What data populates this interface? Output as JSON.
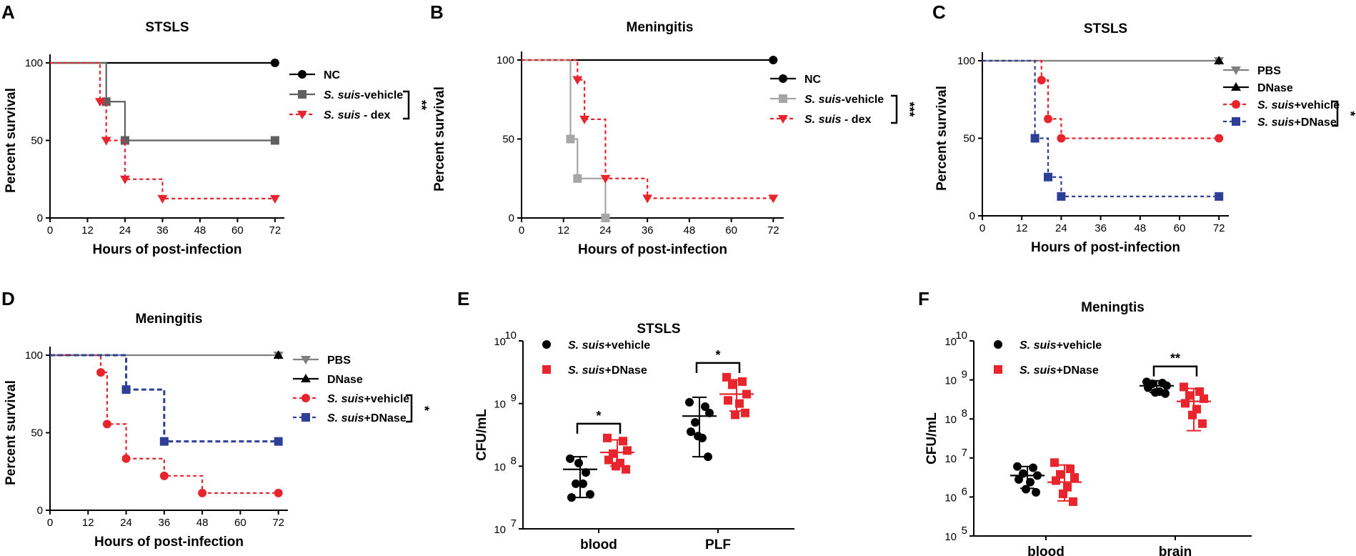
{
  "chart_data": [
    {
      "type": "survival",
      "panel_label": "A",
      "title": "STSLS",
      "xlabel": "Hours of post-infection",
      "ylabel": "Percent survival",
      "xlim": [
        0,
        75
      ],
      "ylim": [
        0,
        100
      ],
      "xticks": [
        "0",
        "12",
        "24",
        "36",
        "48",
        "60",
        "72"
      ],
      "yticks": [
        "0",
        "50",
        "100"
      ],
      "series": [
        {
          "name": "NC",
          "italic": "",
          "rest": "NC",
          "color": "#000000",
          "dash": false,
          "marker": "circle",
          "steps": [
            [
              0,
              100
            ],
            [
              72,
              100
            ]
          ],
          "markers": [
            [
              72,
              100
            ]
          ]
        },
        {
          "name": "S. suis-vehicle",
          "italic": "S. suis",
          "rest": "-vehicle",
          "color": "#606060",
          "dash": false,
          "marker": "square",
          "steps": [
            [
              0,
              100
            ],
            [
              18,
              75
            ],
            [
              24,
              50
            ],
            [
              72,
              50
            ]
          ],
          "markers": [
            [
              18,
              75
            ],
            [
              24,
              50
            ],
            [
              72,
              50
            ]
          ]
        },
        {
          "name": "S. suis - dex",
          "italic": "S. suis",
          "rest": " - dex",
          "color": "#e8252c",
          "dash": true,
          "marker": "triangle-down",
          "steps": [
            [
              0,
              100
            ],
            [
              16,
              75
            ],
            [
              18,
              50
            ],
            [
              24,
              25
            ],
            [
              36,
              12.5
            ],
            [
              72,
              12.5
            ]
          ],
          "markers": [
            [
              16,
              75
            ],
            [
              18,
              50
            ],
            [
              24,
              25
            ],
            [
              36,
              12.5
            ],
            [
              72,
              12.5
            ]
          ]
        }
      ],
      "significance": {
        "label": "**",
        "between": [
          "S. suis-vehicle",
          "S. suis - dex"
        ]
      }
    },
    {
      "type": "survival",
      "panel_label": "B",
      "title": "Meningitis",
      "xlabel": "Hours of post-infection",
      "ylabel": "Percent survival",
      "xlim": [
        0,
        75
      ],
      "ylim": [
        0,
        100
      ],
      "xticks": [
        "0",
        "12",
        "24",
        "36",
        "48",
        "60",
        "72"
      ],
      "yticks": [
        "0",
        "50",
        "100"
      ],
      "series": [
        {
          "name": "NC",
          "italic": "",
          "rest": "NC",
          "color": "#000000",
          "dash": false,
          "marker": "circle",
          "steps": [
            [
              0,
              100
            ],
            [
              72,
              100
            ]
          ],
          "markers": [
            [
              72,
              100
            ]
          ]
        },
        {
          "name": "S. suis-vehicle",
          "italic": "S. suis",
          "rest": "-vehicle",
          "color": "#a6a6a6",
          "dash": false,
          "marker": "square",
          "steps": [
            [
              0,
              100
            ],
            [
              14,
              50
            ],
            [
              16,
              25
            ],
            [
              24,
              0
            ]
          ],
          "markers": [
            [
              14,
              50
            ],
            [
              16,
              25
            ],
            [
              24,
              0
            ]
          ]
        },
        {
          "name": "S. suis - dex",
          "italic": "S. suis",
          "rest": " - dex",
          "color": "#e8252c",
          "dash": true,
          "marker": "triangle-down",
          "steps": [
            [
              0,
              100
            ],
            [
              16,
              87.5
            ],
            [
              18,
              62.5
            ],
            [
              24,
              25
            ],
            [
              36,
              12.5
            ],
            [
              72,
              12.5
            ]
          ],
          "markers": [
            [
              16,
              87.5
            ],
            [
              18,
              62.5
            ],
            [
              24,
              25
            ],
            [
              36,
              12.5
            ],
            [
              72,
              12.5
            ]
          ]
        }
      ],
      "significance": {
        "label": "***",
        "between": [
          "S. suis-vehicle",
          "S. suis - dex"
        ]
      }
    },
    {
      "type": "survival",
      "panel_label": "C",
      "title": "STSLS",
      "xlabel": "Hours of post-infection",
      "ylabel": "Percent survival",
      "xlim": [
        0,
        75
      ],
      "ylim": [
        0,
        100
      ],
      "xticks": [
        "0",
        "12",
        "24",
        "36",
        "48",
        "60",
        "72"
      ],
      "yticks": [
        "0",
        "50",
        "100"
      ],
      "series": [
        {
          "name": "PBS",
          "italic": "",
          "rest": "PBS",
          "color": "#808080",
          "dash": false,
          "marker": "triangle-down",
          "steps": [
            [
              0,
              100
            ],
            [
              72,
              100
            ]
          ],
          "markers": [
            [
              72,
              100
            ]
          ]
        },
        {
          "name": "DNase",
          "italic": "",
          "rest": "DNase",
          "color": "#000000",
          "dash": false,
          "marker": "triangle-up",
          "steps": [],
          "markers": [
            [
              72,
              100
            ]
          ]
        },
        {
          "name": "S. suis+vehicle",
          "italic": "S. suis",
          "rest": "+vehicle",
          "color": "#e8252c",
          "dash": true,
          "marker": "circle",
          "steps": [
            [
              0,
              100
            ],
            [
              18,
              87.5
            ],
            [
              20,
              62.5
            ],
            [
              24,
              50
            ],
            [
              72,
              50
            ]
          ],
          "markers": [
            [
              18,
              87.5
            ],
            [
              20,
              62.5
            ],
            [
              24,
              50
            ],
            [
              72,
              50
            ]
          ]
        },
        {
          "name": "S. suis+DNase",
          "italic": "S. suis",
          "rest": "+DNase",
          "color": "#2e3f98",
          "dash": true,
          "marker": "square",
          "steps": [
            [
              0,
              100
            ],
            [
              16,
              50
            ],
            [
              20,
              25
            ],
            [
              24,
              12.5
            ],
            [
              72,
              12.5
            ]
          ],
          "markers": [
            [
              16,
              50
            ],
            [
              20,
              25
            ],
            [
              24,
              12.5
            ],
            [
              72,
              12.5
            ]
          ]
        }
      ],
      "significance": {
        "label": "*",
        "between": [
          "S. suis+vehicle",
          "S. suis+DNase"
        ]
      }
    },
    {
      "type": "survival",
      "panel_label": "D",
      "title": "Meningitis",
      "xlabel": "Hours of post-infection",
      "ylabel": "Percent survival",
      "xlim": [
        0,
        75
      ],
      "ylim": [
        0,
        100
      ],
      "xticks": [
        "0",
        "12",
        "24",
        "36",
        "48",
        "60",
        "72"
      ],
      "yticks": [
        "0",
        "50",
        "100"
      ],
      "series": [
        {
          "name": "PBS",
          "italic": "",
          "rest": "PBS",
          "color": "#808080",
          "dash": false,
          "marker": "triangle-down",
          "steps": [
            [
              0,
              100
            ],
            [
              72,
              100
            ]
          ],
          "markers": [
            [
              72,
              100
            ]
          ]
        },
        {
          "name": "DNase",
          "italic": "",
          "rest": "DNase",
          "color": "#000000",
          "dash": false,
          "marker": "triangle-up",
          "steps": [],
          "markers": [
            [
              72,
              100
            ]
          ]
        },
        {
          "name": "S. suis+vehicle",
          "italic": "S. suis",
          "rest": "+vehicle",
          "color": "#e8252c",
          "dash": true,
          "marker": "circle",
          "steps": [
            [
              0,
              100
            ],
            [
              16,
              88.9
            ],
            [
              18,
              55.6
            ],
            [
              24,
              33.3
            ],
            [
              36,
              22.2
            ],
            [
              48,
              11.1
            ],
            [
              72,
              11.1
            ]
          ],
          "markers": [
            [
              16,
              88.9
            ],
            [
              18,
              55.6
            ],
            [
              24,
              33.3
            ],
            [
              36,
              22.2
            ],
            [
              48,
              11.1
            ],
            [
              72,
              11.1
            ]
          ]
        },
        {
          "name": "S. suis+DNase",
          "italic": "S. suis",
          "rest": "+DNase",
          "color": "#2e3f98",
          "dash": true,
          "marker": "square",
          "steps": [
            [
              0,
              100
            ],
            [
              24,
              77.8
            ],
            [
              36,
              44.4
            ],
            [
              72,
              44.4
            ]
          ],
          "markers": [
            [
              24,
              77.8
            ],
            [
              36,
              44.4
            ],
            [
              72,
              44.4
            ]
          ]
        }
      ],
      "significance": {
        "label": "*",
        "between": [
          "S. suis+vehicle",
          "S. suis+DNase"
        ]
      }
    },
    {
      "type": "scatter",
      "panel_label": "E",
      "title": "STSLS",
      "ylabel": "CFU/mL",
      "yscale": "log",
      "ylim": [
        7,
        10
      ],
      "ytick_exponents": [
        "7",
        "8",
        "9",
        "10"
      ],
      "categories": [
        "blood",
        "PLF"
      ],
      "series": [
        {
          "name": "S. suis+vehicle",
          "italic": "S. suis",
          "rest": "+vehicle",
          "color": "#000000",
          "marker": "circle",
          "points": [
            {
              "cat": "blood",
              "log10": [
                8.12,
                7.9,
                7.72,
                7.55,
                7.5,
                7.72,
                8.05
              ]
            },
            {
              "cat": "PLF",
              "log10": [
                9.02,
                8.95,
                8.7,
                8.85,
                8.55,
                8.45,
                8.48,
                8.15
              ]
            }
          ],
          "summary": [
            {
              "cat": "blood",
              "mean": 7.95,
              "lo": 7.5,
              "hi": 8.15
            },
            {
              "cat": "PLF",
              "mean": 8.8,
              "lo": 8.15,
              "hi": 9.1
            }
          ]
        },
        {
          "name": "S. suis+DNase",
          "italic": "S. suis",
          "rest": "+DNase",
          "color": "#e8252c",
          "marker": "square",
          "points": [
            {
              "cat": "blood",
              "log10": [
                8.45,
                8.4,
                8.2,
                8.25,
                8.1,
                8.05,
                8.0,
                7.95
              ]
            },
            {
              "cat": "PLF",
              "log10": [
                9.42,
                9.35,
                9.3,
                9.15,
                9.05,
                9.0,
                8.82,
                8.85
              ]
            }
          ],
          "summary": [
            {
              "cat": "blood",
              "mean": 8.22,
              "lo": 8.0,
              "hi": 8.42
            },
            {
              "cat": "PLF",
              "mean": 9.15,
              "lo": 8.88,
              "hi": 9.38
            }
          ]
        }
      ],
      "significance": [
        {
          "category": "blood",
          "label": "*"
        },
        {
          "category": "PLF",
          "label": "*"
        }
      ]
    },
    {
      "type": "scatter",
      "panel_label": "F",
      "title": "Meningtis",
      "ylabel": "CFU/mL",
      "yscale": "log",
      "ylim": [
        5,
        10
      ],
      "ytick_exponents": [
        "5",
        "6",
        "7",
        "8",
        "9",
        "10"
      ],
      "categories": [
        "blood",
        "brain"
      ],
      "series": [
        {
          "name": "S. suis+vehicle",
          "italic": "S. suis",
          "rest": "+vehicle",
          "color": "#000000",
          "marker": "circle",
          "points": [
            {
              "cat": "blood",
              "log10": [
                6.78,
                6.75,
                6.6,
                6.55,
                6.45,
                6.38,
                6.2,
                6.12
              ]
            },
            {
              "cat": "brain",
              "log10": [
                8.95,
                8.92,
                8.9,
                8.85,
                8.8,
                8.7,
                8.68,
                8.65
              ]
            }
          ],
          "summary": [
            {
              "cat": "blood",
              "mean": 6.55,
              "lo": 6.22,
              "hi": 6.78
            },
            {
              "cat": "brain",
              "mean": 8.85,
              "lo": 8.68,
              "hi": 8.98
            }
          ]
        },
        {
          "name": "S. suis+DNase",
          "italic": "S. suis",
          "rest": "+DNase",
          "color": "#e8252c",
          "marker": "square",
          "points": [
            {
              "cat": "blood",
              "log10": [
                6.88,
                6.72,
                6.58,
                6.5,
                6.42,
                6.25,
                6.08,
                5.88
              ]
            },
            {
              "cat": "brain",
              "log10": [
                8.82,
                8.7,
                8.6,
                8.52,
                8.4,
                8.25,
                8.1,
                7.88
              ]
            }
          ],
          "summary": [
            {
              "cat": "blood",
              "mean": 6.38,
              "lo": 5.9,
              "hi": 6.82
            },
            {
              "cat": "brain",
              "mean": 8.45,
              "lo": 7.7,
              "hi": 8.78
            }
          ]
        }
      ],
      "significance": [
        {
          "category": "brain",
          "label": "**"
        }
      ]
    }
  ]
}
